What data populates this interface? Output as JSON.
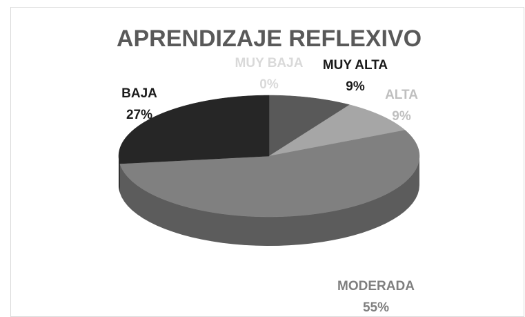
{
  "chart_data": {
    "type": "pie",
    "title": "APRENDIZAJE REFLEXIVO",
    "categories": [
      "MUY BAJA",
      "MUY ALTA",
      "ALTA",
      "MODERADA",
      "BAJA"
    ],
    "values": [
      0,
      9,
      9,
      55,
      27
    ],
    "value_labels": [
      "0%",
      "9%",
      "9%",
      "55%",
      "27%"
    ],
    "colors": [
      "#d9d9d9",
      "#595959",
      "#a6a6a6",
      "#808080",
      "#262626"
    ],
    "label_colors": [
      "#d9d9d9",
      "#1a1a1a",
      "#bfbfbf",
      "#7f7f7f",
      "#1a1a1a"
    ]
  }
}
